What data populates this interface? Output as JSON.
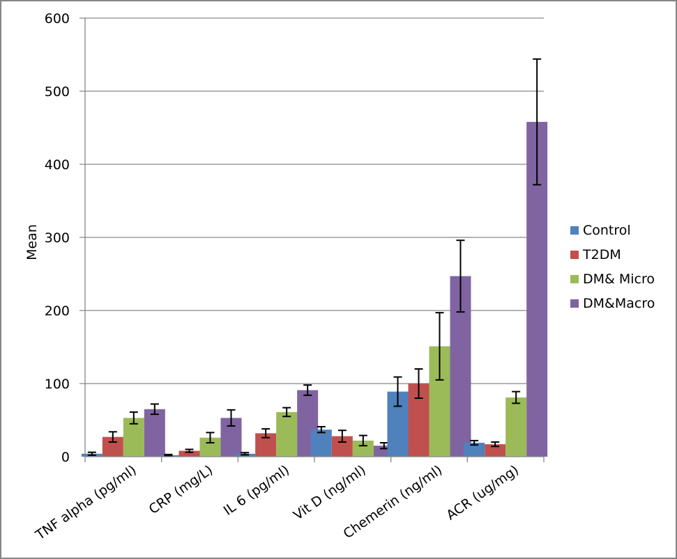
{
  "chart_data": {
    "type": "bar",
    "title": "",
    "xlabel": "",
    "ylabel": "Mean",
    "ylim": [
      0,
      600
    ],
    "yticks": [
      0,
      100,
      200,
      300,
      400,
      500,
      600
    ],
    "grid": true,
    "legend_position": "right",
    "categories": [
      "TNF alpha (pg/ml)",
      "CRP (mg/L)",
      "IL 6 (pg/ml)",
      "Vit D (ng/ml)",
      "Chemerin (ng/ml)",
      "ACR (ug/mg)"
    ],
    "series": [
      {
        "name": "Control",
        "color": "#4F81BD",
        "values": [
          4,
          2,
          4,
          37,
          89,
          19
        ],
        "errors": [
          2,
          1,
          1.5,
          4,
          20,
          3
        ]
      },
      {
        "name": "T2DM",
        "color": "#C0504D",
        "values": [
          27,
          8,
          32,
          28,
          100,
          17
        ],
        "errors": [
          7,
          2,
          6,
          8,
          20,
          3
        ]
      },
      {
        "name": "DM& Micro",
        "color": "#9BBB59",
        "values": [
          53,
          26,
          61,
          22,
          151,
          81
        ],
        "errors": [
          8,
          7,
          6,
          7,
          46,
          8
        ]
      },
      {
        "name": "DM&Macro",
        "color": "#8064A2",
        "values": [
          65,
          53,
          91,
          15,
          247,
          458
        ],
        "errors": [
          7,
          11,
          7,
          4,
          49,
          86
        ]
      }
    ]
  }
}
